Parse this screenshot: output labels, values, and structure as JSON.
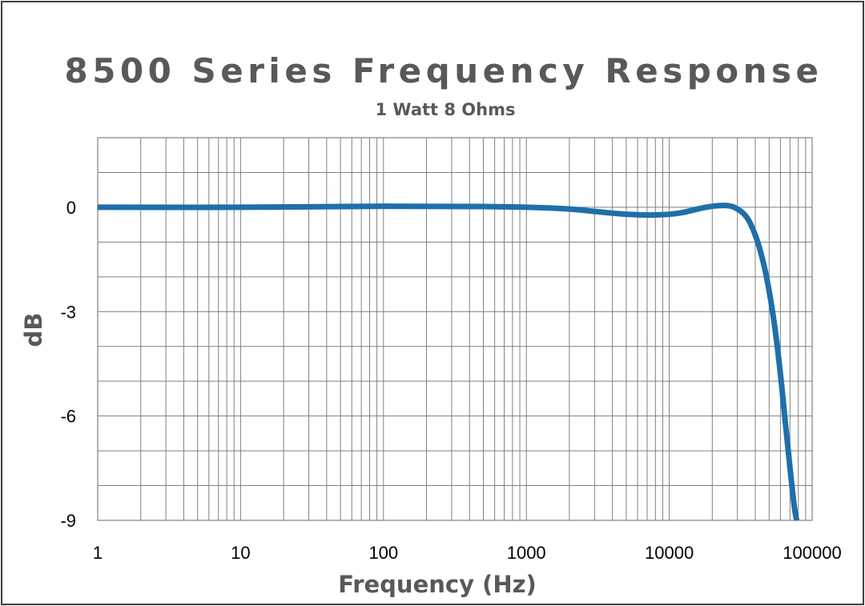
{
  "chart_data": {
    "type": "line",
    "title": "8500 Series Frequency Response",
    "subtitle": "1 Watt 8 Ohms",
    "xlabel": "Frequency (Hz)",
    "ylabel": "dB",
    "x_scale": "log",
    "xlim": [
      1,
      100000
    ],
    "ylim": [
      -9,
      2
    ],
    "x_ticks": [
      1,
      10,
      100,
      1000,
      10000,
      100000
    ],
    "x_tick_labels": [
      "1",
      "10",
      "100",
      "1000",
      "10000",
      "100000"
    ],
    "y_ticks": [
      0,
      -3,
      -6,
      -9
    ],
    "y_tick_labels": [
      "0",
      "-3",
      "-6",
      "-9"
    ],
    "grid": true,
    "legend": "none",
    "series": [
      {
        "color": "#1f6faa",
        "x": [
          1,
          10,
          100,
          500,
          1000,
          2000,
          3000,
          5000,
          8000,
          12000,
          18000,
          25000,
          30000,
          35000,
          40000,
          45000,
          50000,
          55000,
          60000,
          65000,
          70000,
          75000,
          78000
        ],
        "y": [
          0,
          0,
          0.03,
          0.02,
          0,
          -0.05,
          -0.12,
          -0.2,
          -0.22,
          -0.16,
          0,
          0.05,
          -0.05,
          -0.3,
          -0.8,
          -1.5,
          -2.4,
          -3.5,
          -4.8,
          -6.2,
          -7.5,
          -8.6,
          -9.0
        ]
      }
    ]
  }
}
